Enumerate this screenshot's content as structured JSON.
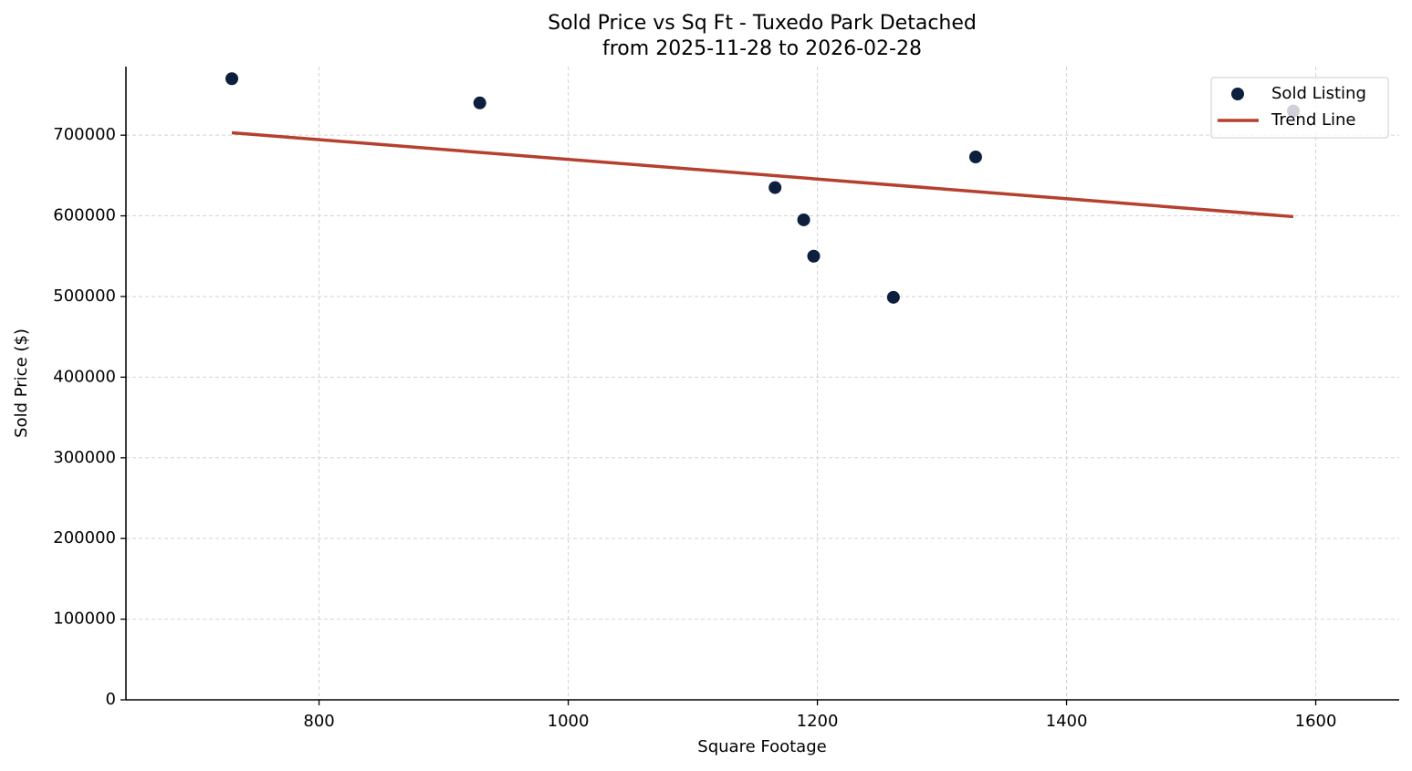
{
  "chart_data": {
    "type": "scatter",
    "title": "Sold Price vs Sq Ft - Tuxedo Park Detached",
    "subtitle": "from 2025-11-28 to 2026-02-28",
    "x_label": "Square Footage",
    "y_label": "Sold Price ($)",
    "xlim": [
      645,
      1667
    ],
    "ylim": [
      0,
      785000
    ],
    "xticks": [
      800,
      1000,
      1200,
      1400,
      1600
    ],
    "yticks": [
      0,
      100000,
      200000,
      300000,
      400000,
      500000,
      600000,
      700000
    ],
    "grid": true,
    "legend": "upper right",
    "series": [
      {
        "name": "Sold Listing",
        "type": "scatter",
        "color": "#0d1f3c",
        "x": [
          730,
          929,
          1166,
          1189,
          1197,
          1261,
          1327,
          1582
        ],
        "values": [
          770000,
          740000,
          635000,
          595000,
          550000,
          499000,
          673000,
          730000
        ]
      },
      {
        "name": "Trend Line",
        "type": "line",
        "color": "#b5402f",
        "x": [
          730,
          1582
        ],
        "values": [
          703000,
          599000
        ]
      }
    ]
  }
}
